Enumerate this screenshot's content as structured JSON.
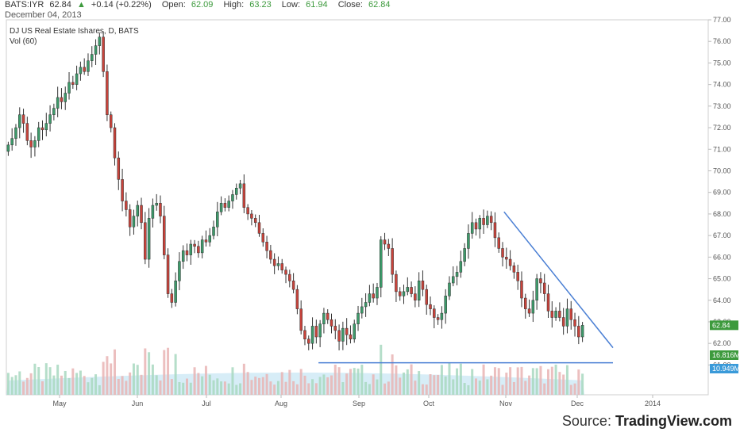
{
  "header": {
    "symbol": "BATS:IYR",
    "last": "62.84",
    "change_arrow": "▲",
    "change": "+0.14 (+0.22%)",
    "open_label": "Open:",
    "open": "62.09",
    "high_label": "High:",
    "high": "63.23",
    "low_label": "Low:",
    "low": "61.94",
    "close_label": "Close:",
    "close": "62.84",
    "date": "December 04, 2013"
  },
  "legend": {
    "title": "DJ US Real Estate Ishares, D, BATS",
    "volume": "Vol (60)"
  },
  "source": {
    "prefix": "Source: ",
    "brand": "TradingView.com"
  },
  "colors": {
    "up": "#3d9a6a",
    "down": "#c8433b",
    "vol_up": "#a8d8c0",
    "vol_down": "#e9b4b4",
    "vol_avg": "#b7dff0",
    "trendline": "#4a7fd4",
    "price_badge": "#3d9a3d",
    "vol_badge": "#3d9a3d",
    "avg_badge": "#3a9ad9"
  },
  "chart_data": {
    "type": "candlestick",
    "title": "DJ US Real Estate Ishares, D, BATS",
    "x_tick_labels": [
      "May",
      "Jun",
      "Jul",
      "Aug",
      "Sep",
      "Oct",
      "Nov",
      "Dec",
      "2014"
    ],
    "y_tick_labels": [
      "61.00",
      "62.00",
      "63.00",
      "64.00",
      "65.00",
      "66.00",
      "67.00",
      "68.00",
      "69.00",
      "70.00",
      "71.00",
      "72.00",
      "73.00",
      "74.00",
      "75.00",
      "76.00",
      "77.00"
    ],
    "ylim": [
      60.5,
      77
    ],
    "last_price_label": "62.84",
    "volume_label": "16.816M",
    "volume_avg_label": "10.949M",
    "close_series": [
      71.2,
      71.5,
      72.0,
      72.6,
      72.2,
      71.4,
      71.1,
      71.4,
      72.0,
      71.9,
      72.2,
      72.6,
      72.9,
      73.4,
      73.2,
      73.6,
      74.1,
      74.0,
      74.5,
      74.8,
      74.6,
      75.1,
      75.4,
      75.8,
      76.2,
      74.6,
      72.6,
      72.0,
      70.6,
      69.6,
      68.6,
      68.2,
      67.4,
      67.9,
      68.4,
      67.6,
      65.9,
      67.8,
      68.4,
      68.5,
      67.9,
      66.1,
      64.3,
      63.9,
      64.9,
      65.8,
      66.3,
      66.1,
      66.6,
      66.5,
      66.2,
      66.8,
      66.7,
      67.0,
      67.4,
      68.1,
      68.5,
      68.3,
      68.6,
      68.9,
      69.2,
      69.4,
      68.3,
      68.0,
      67.8,
      67.6,
      67.1,
      66.7,
      66.3,
      65.9,
      65.6,
      65.7,
      65.4,
      65.2,
      64.9,
      64.5,
      63.6,
      62.6,
      62.2,
      62.0,
      62.8,
      62.3,
      62.9,
      63.4,
      63.1,
      62.8,
      62.6,
      62.1,
      62.7,
      62.4,
      62.2,
      62.9,
      63.4,
      63.7,
      63.9,
      64.3,
      64.1,
      64.6,
      66.8,
      66.6,
      66.4,
      65.2,
      64.4,
      64.2,
      64.4,
      64.6,
      64.3,
      64.0,
      64.9,
      64.5,
      63.8,
      63.6,
      63.2,
      63.1,
      63.4,
      64.2,
      64.8,
      65.1,
      65.3,
      65.8,
      66.4,
      67.1,
      67.6,
      67.3,
      67.8,
      67.5,
      67.9,
      67.6,
      66.9,
      66.4,
      66.0,
      65.9,
      65.6,
      65.3,
      64.9,
      64.1,
      63.6,
      63.4,
      64.0,
      65.0,
      64.8,
      64.3,
      63.5,
      63.2,
      63.5,
      63.2,
      62.8,
      63.6,
      63.1,
      62.8,
      62.3,
      62.84
    ],
    "trendlines": [
      {
        "from": [
          0.861,
          68.1
        ],
        "to": [
          1.0,
          61.8
        ]
      },
      {
        "from": [
          0.54,
          61.1
        ],
        "to": [
          1.0,
          61.1
        ]
      }
    ]
  }
}
